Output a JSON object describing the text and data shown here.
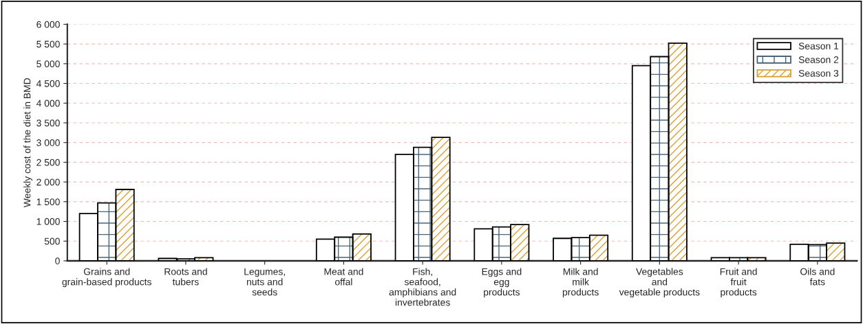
{
  "chart_data": {
    "type": "bar",
    "ylabel": "Weekly cost of the diet in BMD",
    "categories": [
      "Grains and\ngrain-based products",
      "Roots and\ntubers",
      "Legumes,\nnuts and\nseeds",
      "Meat and\noffal",
      "Fish,\nseafood,\namphibians and\ninvertebrates",
      "Eggs and\negg\nproducts",
      "Milk and\nmilk\nproducts",
      "Vegetables\nand\nvegetable products",
      "Fruit and\nfruit\nproducts",
      "Oils and\nfats"
    ],
    "series": [
      {
        "name": "Season 1",
        "color": "#000000",
        "values": [
          1200,
          60,
          null,
          550,
          2700,
          810,
          570,
          4950,
          80,
          420
        ]
      },
      {
        "name": "Season 2",
        "color": "#4a6478",
        "values": [
          1470,
          50,
          null,
          600,
          2880,
          860,
          590,
          5180,
          80,
          410
        ]
      },
      {
        "name": "Season 3",
        "color": "#d9a030",
        "values": [
          1810,
          80,
          null,
          680,
          3130,
          920,
          650,
          5520,
          80,
          450
        ]
      }
    ],
    "ylim": [
      0,
      6000
    ],
    "yticks": [
      0,
      500,
      {
        "value": 1000,
        "label": "1 000"
      },
      {
        "value": 1500,
        "label": "1 500"
      },
      {
        "value": 2000,
        "label": "2 000"
      },
      {
        "value": 2500,
        "label": "2 500"
      },
      {
        "value": 3000,
        "label": "3 000"
      },
      {
        "value": 3500,
        "label": "3 500"
      },
      {
        "value": 4000,
        "label": "4 000"
      },
      {
        "value": 4500,
        "label": "4 500"
      },
      {
        "value": 5000,
        "label": "5 000"
      },
      {
        "value": 5500,
        "label": "5 500"
      },
      {
        "value": 6000,
        "label": "6 000"
      }
    ],
    "grid": "y",
    "legend": "top right"
  }
}
